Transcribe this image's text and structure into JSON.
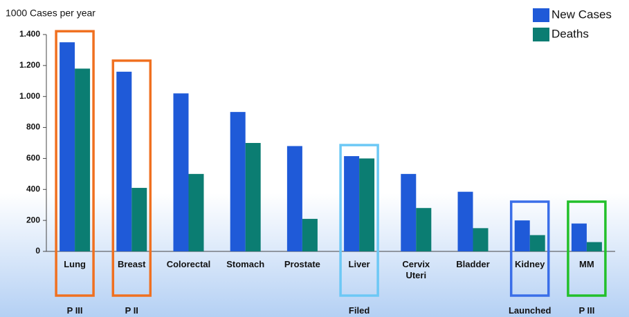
{
  "chart_data": {
    "type": "bar",
    "y_axis_label": "1000 Cases per year",
    "categories": [
      "Lung",
      "Breast",
      "Colorectal",
      "Stomach",
      "Prostate",
      "Liver",
      "Cervix Uteri",
      "Bladder",
      "Kidney",
      "MM"
    ],
    "series": [
      {
        "name": "New Cases",
        "color": "#1f5ad8",
        "values": [
          1350,
          1160,
          1020,
          900,
          680,
          615,
          500,
          385,
          200,
          180
        ]
      },
      {
        "name": "Deaths",
        "color": "#0b7d72",
        "values": [
          1180,
          410,
          500,
          700,
          210,
          600,
          280,
          150,
          105,
          60
        ]
      }
    ],
    "ylim": [
      0,
      1400
    ],
    "yticks": [
      0,
      200,
      400,
      600,
      800,
      {
        "value": 1000,
        "label": "1.000"
      },
      {
        "value": 1200,
        "label": "1.200"
      },
      {
        "value": 1400,
        "label": "1.400"
      }
    ],
    "legend": "top-right",
    "annotations": [
      {
        "category": "Lung",
        "label": "P III",
        "color": "#f07020"
      },
      {
        "category": "Breast",
        "label": "P II",
        "color": "#f07020"
      },
      {
        "category": "Liver",
        "label": "Filed",
        "color": "#6cc8f5"
      },
      {
        "category": "Kidney",
        "label": "Launched",
        "color": "#3a6ee8"
      },
      {
        "category": "MM",
        "label": "P III",
        "color": "#22c02a"
      }
    ]
  }
}
